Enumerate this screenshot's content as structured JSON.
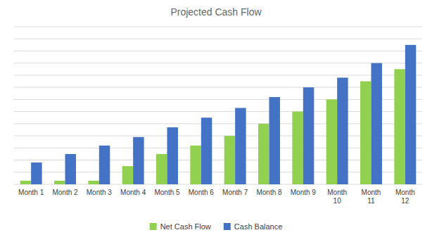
{
  "chart_data": {
    "type": "bar",
    "title": "Projected Cash Flow",
    "categories": [
      "Month 1",
      "Month 2",
      "Month 3",
      "Month 4",
      "Month 5",
      "Month 6",
      "Month 7",
      "Month 8",
      "Month 9",
      "Month\n10",
      "Month\n11",
      "Month\n12"
    ],
    "series": [
      {
        "name": "Net Cash Flow",
        "color": "#92d050",
        "values": [
          0.3,
          0.3,
          0.3,
          1.5,
          2.5,
          3.2,
          4.0,
          5.0,
          6.0,
          7.0,
          8.5,
          9.5
        ]
      },
      {
        "name": "Cash Balance",
        "color": "#4472c4",
        "values": [
          1.8,
          2.5,
          3.2,
          3.9,
          4.7,
          5.5,
          6.3,
          7.2,
          8.0,
          8.8,
          10.0,
          11.5
        ]
      }
    ],
    "ylim": [
      0,
      13
    ],
    "yticks": [
      0,
      1,
      2,
      3,
      4,
      5,
      6,
      7,
      8,
      9,
      10,
      11,
      12,
      13
    ],
    "grid": true,
    "tick_labels": "x",
    "legend": "bottom"
  }
}
